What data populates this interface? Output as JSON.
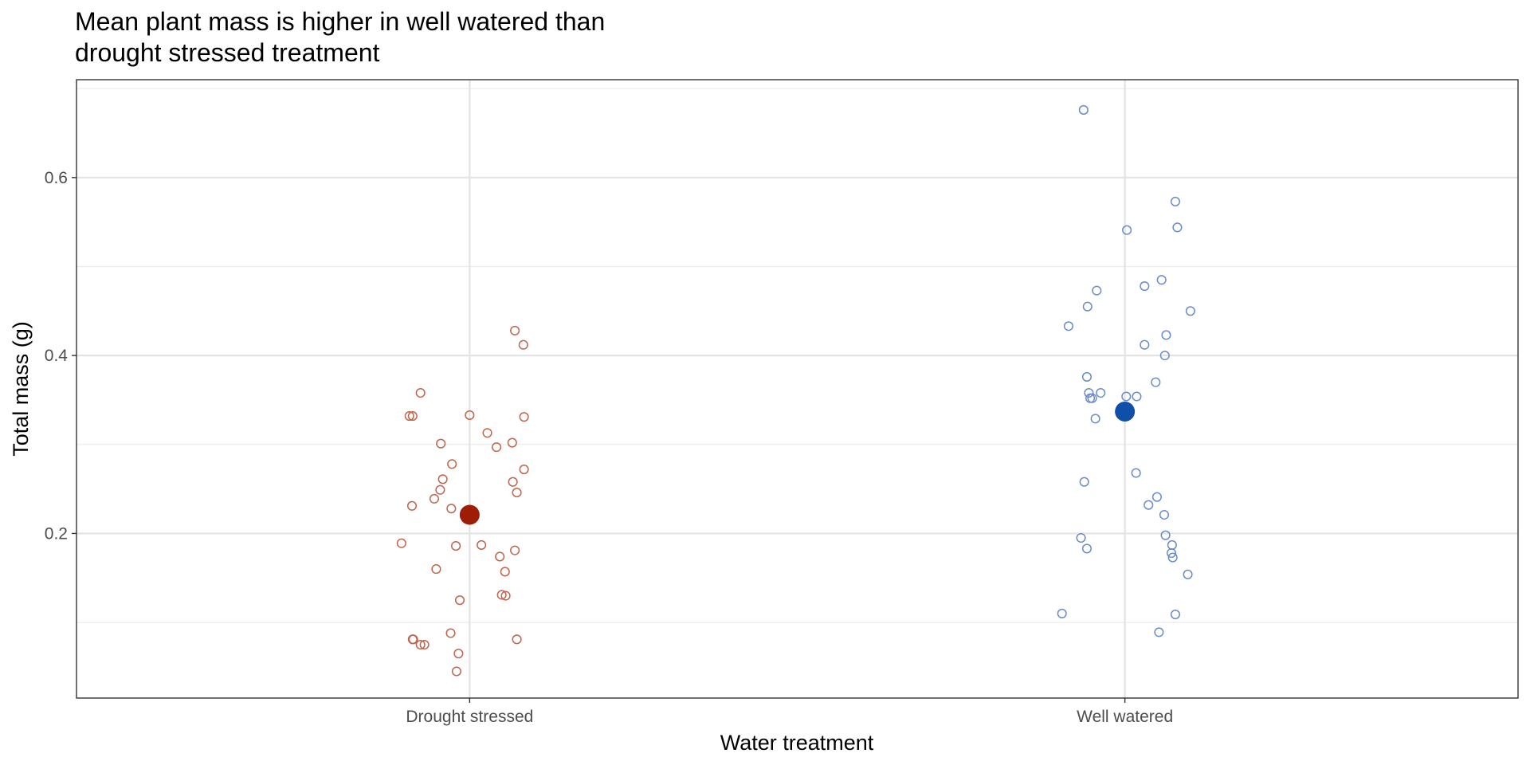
{
  "chart_data": {
    "type": "scatter",
    "title": "Mean plant mass is higher in well watered than\ndrought stressed treatment",
    "xlabel": "Water treatment",
    "ylabel": "Total mass (g)",
    "categories": [
      "Drought stressed",
      "Well watered"
    ],
    "ylim": [
      0.015,
      0.71
    ],
    "y_ticks": [
      0.2,
      0.4,
      0.6
    ],
    "y_tick_labels": [
      "0.2",
      "0.4",
      "0.6"
    ],
    "grid": true,
    "legend": "none",
    "series": [
      {
        "category": "Drought stressed",
        "color": "#c0654d",
        "mean_color": "#9e1d05",
        "mean": 0.221,
        "jitter": [
          -0.104,
          -0.088,
          -0.087,
          -0.075,
          -0.086,
          -0.075,
          -0.044,
          -0.027,
          -0.041,
          -0.045,
          -0.028,
          -0.054,
          -0.021,
          0,
          -0.092,
          -0.029,
          0.069,
          0.082,
          0.083,
          0.065,
          0.083,
          0.072,
          0.027,
          0.041,
          0.018,
          0.066,
          0.069,
          0.054,
          0.055,
          -0.051,
          -0.015,
          0.046,
          -0.087,
          -0.069,
          -0.02,
          0.072,
          0.049,
          -0.017
        ],
        "values": [
          0.189,
          0.231,
          0.332,
          0.358,
          0.081,
          0.075,
          0.301,
          0.278,
          0.261,
          0.249,
          0.228,
          0.239,
          0.186,
          0.333,
          0.332,
          0.088,
          0.428,
          0.412,
          0.331,
          0.302,
          0.272,
          0.246,
          0.313,
          0.297,
          0.187,
          0.258,
          0.181,
          0.157,
          0.13,
          0.16,
          0.125,
          0.174,
          0.081,
          0.075,
          0.045,
          0.081,
          0.131,
          0.065
        ]
      },
      {
        "category": "Well watered",
        "color": "#6a8cc8",
        "mean_color": "#0f4fa8",
        "mean": 0.337,
        "jitter": [
          -0.063,
          -0.086,
          -0.062,
          -0.043,
          -0.057,
          -0.058,
          -0.053,
          -0.037,
          -0.055,
          -0.045,
          -0.05,
          0.003,
          0.077,
          0.08,
          0.056,
          0.03,
          0.1,
          0.063,
          0.061,
          0.03,
          0.047,
          0.049,
          0.06,
          0.017,
          0.036,
          0.018,
          0.062,
          0.072,
          0.073,
          0.071,
          0.096,
          -0.067,
          -0.058,
          -0.096,
          0.077,
          0.052,
          0.002
        ],
        "values": [
          0.676,
          0.433,
          0.258,
          0.473,
          0.455,
          0.376,
          0.352,
          0.358,
          0.358,
          0.329,
          0.352,
          0.541,
          0.573,
          0.544,
          0.485,
          0.478,
          0.45,
          0.423,
          0.4,
          0.412,
          0.37,
          0.241,
          0.221,
          0.268,
          0.232,
          0.354,
          0.198,
          0.187,
          0.173,
          0.178,
          0.154,
          0.195,
          0.183,
          0.11,
          0.109,
          0.089,
          0.354
        ]
      }
    ]
  }
}
